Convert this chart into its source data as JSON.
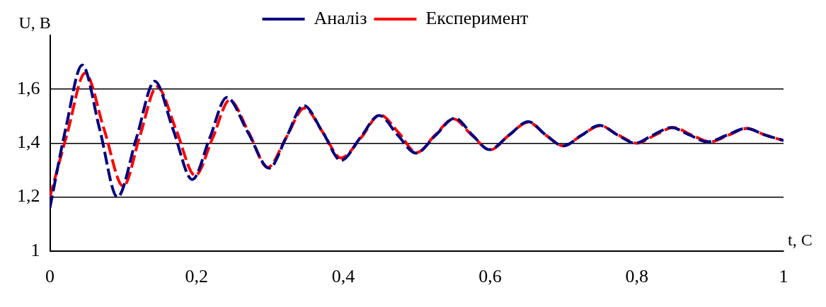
{
  "chart_data": {
    "type": "line",
    "xlabel": "t, C",
    "ylabel": "U, В",
    "xlim": [
      0,
      1
    ],
    "xticks": [
      0,
      {
        "value": 0.2,
        "label": "0,2"
      },
      {
        "value": 0.4,
        "label": "0,4"
      },
      {
        "value": 0.6,
        "label": "0,6"
      },
      {
        "value": 0.8,
        "label": "0,8"
      },
      1
    ],
    "ylim": [
      1,
      1.8
    ],
    "yticks": [
      1,
      {
        "value": 1.2,
        "label": "1,2"
      },
      {
        "value": 1.4,
        "label": "1,4"
      },
      {
        "value": 1.6,
        "label": "1,6"
      }
    ],
    "grid": "y",
    "legend": "top",
    "marker": "none",
    "line_style": "dashed",
    "series": [
      {
        "name": "Аналіз",
        "color": "#000080",
        "x": [
          0,
          0.022,
          0.044,
          0.068,
          0.092,
          0.118,
          0.143,
          0.168,
          0.194,
          0.218,
          0.241,
          0.27,
          0.299,
          0.322,
          0.346,
          0.372,
          0.397,
          0.423,
          0.449,
          0.474,
          0.499,
          0.526,
          0.552,
          0.576,
          0.599,
          0.626,
          0.652,
          0.676,
          0.7,
          0.725,
          0.749,
          0.774,
          0.798,
          0.822,
          0.847,
          0.872,
          0.897,
          0.923,
          0.949,
          0.975,
          1.0
        ],
        "values": [
          1.16,
          1.46,
          1.69,
          1.45,
          1.2,
          1.42,
          1.63,
          1.45,
          1.265,
          1.42,
          1.57,
          1.44,
          1.307,
          1.42,
          1.54,
          1.44,
          1.336,
          1.42,
          1.503,
          1.43,
          1.363,
          1.43,
          1.493,
          1.43,
          1.376,
          1.43,
          1.48,
          1.43,
          1.39,
          1.43,
          1.466,
          1.43,
          1.4,
          1.43,
          1.458,
          1.43,
          1.405,
          1.43,
          1.455,
          1.43,
          1.41
        ]
      },
      {
        "name": "Експеримент",
        "color": "#ff0000",
        "x": [
          0,
          0.024,
          0.048,
          0.074,
          0.1,
          0.123,
          0.146,
          0.172,
          0.198,
          0.222,
          0.245,
          0.271,
          0.297,
          0.322,
          0.347,
          0.372,
          0.397,
          0.424,
          0.45,
          0.475,
          0.5,
          0.525,
          0.55,
          0.575,
          0.6,
          0.626,
          0.652,
          0.676,
          0.7,
          0.725,
          0.75,
          0.775,
          0.8,
          0.825,
          0.85,
          0.875,
          0.9,
          0.925,
          0.95,
          0.975,
          1.0
        ],
        "values": [
          1.2,
          1.44,
          1.66,
          1.45,
          1.24,
          1.43,
          1.61,
          1.45,
          1.28,
          1.42,
          1.56,
          1.44,
          1.31,
          1.42,
          1.53,
          1.44,
          1.345,
          1.42,
          1.505,
          1.44,
          1.365,
          1.43,
          1.49,
          1.43,
          1.375,
          1.43,
          1.478,
          1.43,
          1.39,
          1.43,
          1.465,
          1.43,
          1.4,
          1.43,
          1.458,
          1.43,
          1.405,
          1.43,
          1.455,
          1.43,
          1.41
        ]
      }
    ]
  }
}
